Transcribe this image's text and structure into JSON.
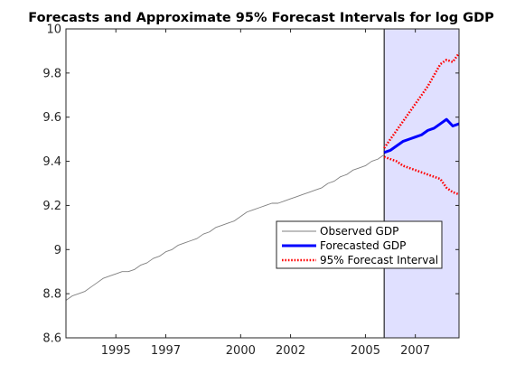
{
  "chart_data": {
    "type": "line",
    "title": "Forecasts and Approximate 95%  Forecast Intervals for log GDP",
    "xlabel": "",
    "ylabel": "",
    "xlim": [
      1993.0,
      2008.75
    ],
    "ylim": [
      8.6,
      10.0
    ],
    "x_ticks": [
      1995,
      1997,
      2000,
      2002,
      2005,
      2007
    ],
    "y_ticks": [
      8.6,
      8.8,
      9.0,
      9.2,
      9.4,
      9.6,
      9.8,
      10.0
    ],
    "y_tick_labels": [
      "8.6",
      "8.8",
      "9",
      "9.2",
      "9.4",
      "9.6",
      "9.8",
      "10"
    ],
    "grid": false,
    "legend_position": "lower-right",
    "forecast_region": {
      "start": 2005.75,
      "end": 2008.75,
      "color": "#e0e0ff"
    },
    "colors": {
      "observed": "#7f7f7f",
      "forecast": "#0000ff",
      "interval": "#ff0000"
    },
    "series": [
      {
        "name": "Observed GDP",
        "style": "solid-thin",
        "x": [
          1993.0,
          1993.25,
          1993.5,
          1993.75,
          1994.0,
          1994.25,
          1994.5,
          1994.75,
          1995.0,
          1995.25,
          1995.5,
          1995.75,
          1996.0,
          1996.25,
          1996.5,
          1996.75,
          1997.0,
          1997.25,
          1997.5,
          1997.75,
          1998.0,
          1998.25,
          1998.5,
          1998.75,
          1999.0,
          1999.25,
          1999.5,
          1999.75,
          2000.0,
          2000.25,
          2000.5,
          2000.75,
          2001.0,
          2001.25,
          2001.5,
          2001.75,
          2002.0,
          2002.25,
          2002.5,
          2002.75,
          2003.0,
          2003.25,
          2003.5,
          2003.75,
          2004.0,
          2004.25,
          2004.5,
          2004.75,
          2005.0,
          2005.25,
          2005.5,
          2005.75
        ],
        "values": [
          8.77,
          8.79,
          8.8,
          8.81,
          8.83,
          8.85,
          8.87,
          8.88,
          8.89,
          8.9,
          8.9,
          8.91,
          8.93,
          8.94,
          8.96,
          8.97,
          8.99,
          9.0,
          9.02,
          9.03,
          9.04,
          9.05,
          9.07,
          9.08,
          9.1,
          9.11,
          9.12,
          9.13,
          9.15,
          9.17,
          9.18,
          9.19,
          9.2,
          9.21,
          9.21,
          9.22,
          9.23,
          9.24,
          9.25,
          9.26,
          9.27,
          9.28,
          9.3,
          9.31,
          9.33,
          9.34,
          9.36,
          9.37,
          9.38,
          9.4,
          9.41,
          9.43
        ]
      },
      {
        "name": "Forecasted GDP",
        "style": "solid-thick",
        "x": [
          2005.75,
          2006.0,
          2006.25,
          2006.5,
          2006.75,
          2007.0,
          2007.25,
          2007.5,
          2007.75,
          2008.0,
          2008.25,
          2008.5,
          2008.75
        ],
        "values": [
          9.44,
          9.45,
          9.47,
          9.49,
          9.5,
          9.51,
          9.52,
          9.54,
          9.55,
          9.57,
          9.59,
          9.56,
          9.57
        ]
      },
      {
        "name": "95% Forecast Interval",
        "style": "dotted",
        "x": [
          2005.75,
          2006.0,
          2006.25,
          2006.5,
          2006.75,
          2007.0,
          2007.25,
          2007.5,
          2007.75,
          2008.0,
          2008.25,
          2008.5,
          2008.75
        ],
        "values": [
          9.46,
          9.5,
          9.54,
          9.58,
          9.62,
          9.66,
          9.7,
          9.74,
          9.79,
          9.84,
          9.86,
          9.85,
          9.89
        ]
      },
      {
        "name": "",
        "style": "dotted",
        "x": [
          2005.75,
          2006.0,
          2006.25,
          2006.5,
          2006.75,
          2007.0,
          2007.25,
          2007.5,
          2007.75,
          2008.0,
          2008.25,
          2008.5,
          2008.75
        ],
        "values": [
          9.42,
          9.41,
          9.4,
          9.38,
          9.37,
          9.36,
          9.35,
          9.34,
          9.33,
          9.32,
          9.28,
          9.26,
          9.25
        ]
      }
    ],
    "legend": [
      "Observed GDP",
      "Forecasted GDP",
      "95% Forecast Interval"
    ]
  }
}
